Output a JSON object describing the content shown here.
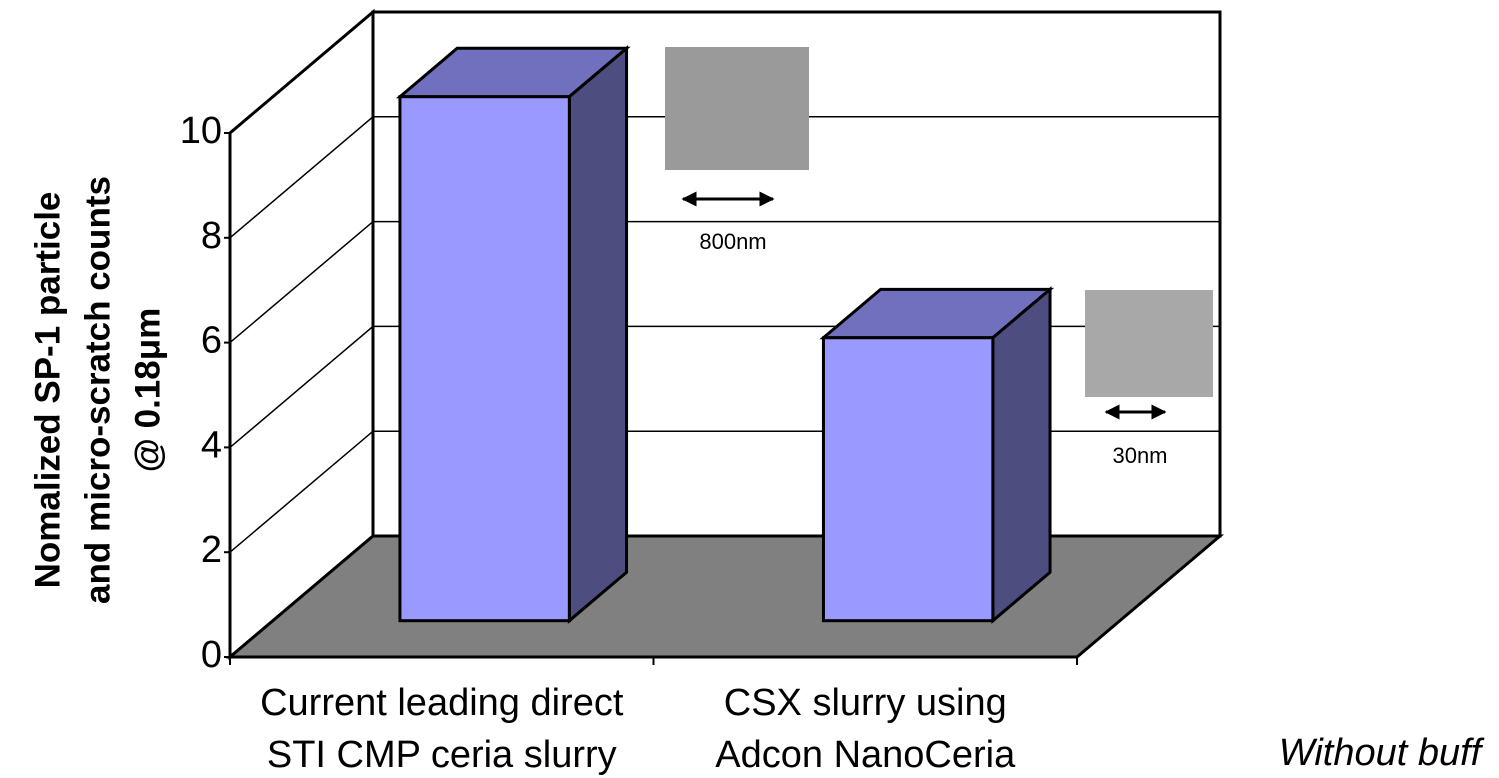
{
  "chart_data": {
    "type": "bar3d",
    "y_label": [
      "Nomalized SP-1 particle",
      "and micro-scratch counts",
      "@ 0.18μm"
    ],
    "categories": [
      [
        "Current leading direct",
        "STI CMP ceria slurry"
      ],
      [
        "CSX slurry using",
        "Adcon NanoCeria"
      ]
    ],
    "values": [
      10,
      5.4
    ],
    "colors": {
      "front": "#9999ff",
      "top": "#7070bf",
      "side": "#4d4d80",
      "floor": "#808080"
    },
    "ylim": [
      0,
      10
    ],
    "yticks": [
      0,
      2,
      4,
      6,
      8,
      10
    ],
    "grid": true,
    "annotations": [
      "800nm",
      "30nm",
      "Without buff"
    ]
  }
}
